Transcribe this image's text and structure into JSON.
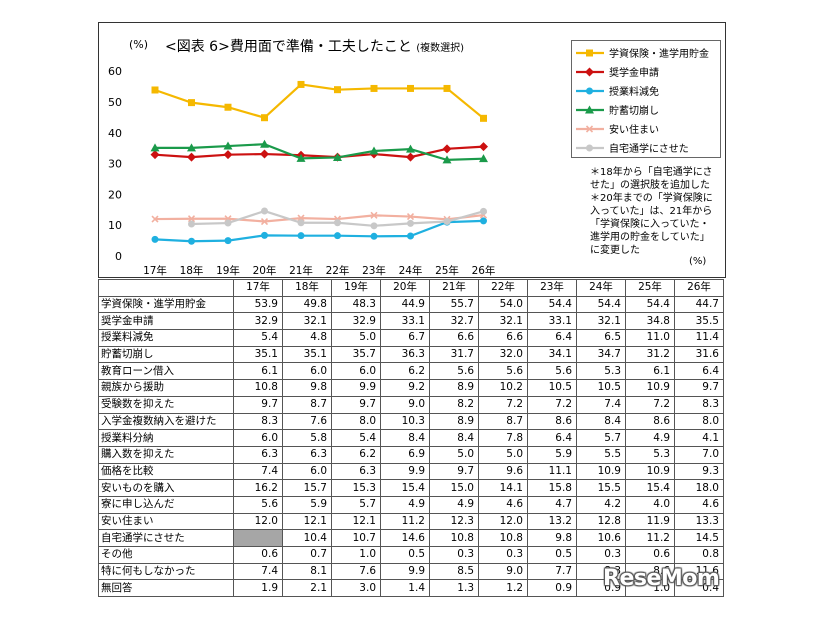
{
  "chart_data": {
    "type": "line",
    "title": "<図表 6>費用面で準備・工夫したこと",
    "subtitle": "(複数選択)",
    "ylabel": "(%)",
    "xunit": "(%)",
    "ylim": [
      0,
      60
    ],
    "yticks": [
      0,
      10,
      20,
      30,
      40,
      50,
      60
    ],
    "categories": [
      "17年",
      "18年",
      "19年",
      "20年",
      "21年",
      "22年",
      "23年",
      "24年",
      "25年",
      "26年"
    ],
    "legend_position": "top-right",
    "series": [
      {
        "name": "学資保険・進学用貯金",
        "color": "#f5b800",
        "marker": "square",
        "values": [
          53.9,
          49.8,
          48.3,
          44.9,
          55.7,
          54.0,
          54.4,
          54.4,
          54.4,
          44.7
        ]
      },
      {
        "name": "奨学金申請",
        "color": "#cc1111",
        "marker": "diamond",
        "values": [
          32.9,
          32.1,
          32.9,
          33.1,
          32.7,
          32.1,
          33.1,
          32.1,
          34.8,
          35.5
        ]
      },
      {
        "name": "授業料減免",
        "color": "#1fb0e0",
        "marker": "circle",
        "values": [
          5.4,
          4.8,
          5.0,
          6.7,
          6.6,
          6.6,
          6.4,
          6.5,
          11.0,
          11.4
        ]
      },
      {
        "name": "貯蓄切崩し",
        "color": "#1a9a4a",
        "marker": "triangle",
        "values": [
          35.1,
          35.1,
          35.7,
          36.3,
          31.7,
          32.0,
          34.1,
          34.7,
          31.2,
          31.6
        ]
      },
      {
        "name": "安い住まい",
        "color": "#f2b0a0",
        "marker": "x",
        "values": [
          12.0,
          12.1,
          12.1,
          11.2,
          12.3,
          12.0,
          13.2,
          12.8,
          11.9,
          13.3
        ]
      },
      {
        "name": "自宅通学にさせた",
        "color": "#c8c8c8",
        "marker": "circle",
        "values": [
          null,
          10.4,
          10.7,
          14.6,
          10.8,
          10.8,
          9.8,
          10.6,
          11.2,
          14.5
        ]
      }
    ],
    "notes": [
      "＊18年から「自宅通学にさ",
      "せた」の選択肢を追加した",
      "＊20年までの「学資保険に",
      "入っていた」は、21年から",
      "「学資保険に入っていた・",
      "進学用の貯金をしていた」",
      "に変更した"
    ],
    "table": {
      "headers": [
        "17年",
        "18年",
        "19年",
        "20年",
        "21年",
        "22年",
        "23年",
        "24年",
        "25年",
        "26年"
      ],
      "rows": [
        {
          "label": "学資保険・進学用貯金",
          "values": [
            "53.9",
            "49.8",
            "48.3",
            "44.9",
            "55.7",
            "54.0",
            "54.4",
            "54.4",
            "54.4",
            "44.7"
          ]
        },
        {
          "label": "奨学金申請",
          "values": [
            "32.9",
            "32.1",
            "32.9",
            "33.1",
            "32.7",
            "32.1",
            "33.1",
            "32.1",
            "34.8",
            "35.5"
          ]
        },
        {
          "label": "授業料減免",
          "values": [
            "5.4",
            "4.8",
            "5.0",
            "6.7",
            "6.6",
            "6.6",
            "6.4",
            "6.5",
            "11.0",
            "11.4"
          ]
        },
        {
          "label": "貯蓄切崩し",
          "values": [
            "35.1",
            "35.1",
            "35.7",
            "36.3",
            "31.7",
            "32.0",
            "34.1",
            "34.7",
            "31.2",
            "31.6"
          ]
        },
        {
          "label": "教育ローン借入",
          "values": [
            "6.1",
            "6.0",
            "6.0",
            "6.2",
            "5.6",
            "5.6",
            "5.6",
            "5.3",
            "6.1",
            "6.4"
          ]
        },
        {
          "label": "親族から援助",
          "values": [
            "10.8",
            "9.8",
            "9.9",
            "9.2",
            "8.9",
            "10.2",
            "10.5",
            "10.5",
            "10.9",
            "9.7"
          ]
        },
        {
          "label": "受験数を抑えた",
          "values": [
            "9.7",
            "8.7",
            "9.7",
            "9.0",
            "8.2",
            "7.2",
            "7.2",
            "7.4",
            "7.2",
            "8.3"
          ]
        },
        {
          "label": "入学金複数納入を避けた",
          "values": [
            "8.3",
            "7.6",
            "8.0",
            "10.3",
            "8.9",
            "8.7",
            "8.6",
            "8.4",
            "8.6",
            "8.0"
          ]
        },
        {
          "label": "授業料分納",
          "values": [
            "6.0",
            "5.8",
            "5.4",
            "8.4",
            "8.4",
            "7.8",
            "6.4",
            "5.7",
            "4.9",
            "4.1"
          ]
        },
        {
          "label": "購入数を抑えた",
          "values": [
            "6.3",
            "6.3",
            "6.2",
            "6.9",
            "5.0",
            "5.0",
            "5.9",
            "5.5",
            "5.3",
            "7.0"
          ]
        },
        {
          "label": "価格を比較",
          "values": [
            "7.4",
            "6.0",
            "6.3",
            "9.9",
            "9.7",
            "9.6",
            "11.1",
            "10.9",
            "10.9",
            "9.3"
          ]
        },
        {
          "label": "安いものを購入",
          "values": [
            "16.2",
            "15.7",
            "15.3",
            "15.4",
            "15.0",
            "14.1",
            "15.8",
            "15.5",
            "15.4",
            "18.0"
          ]
        },
        {
          "label": "寮に申し込んだ",
          "values": [
            "5.6",
            "5.9",
            "5.7",
            "4.9",
            "4.9",
            "4.6",
            "4.7",
            "4.2",
            "4.0",
            "4.6"
          ]
        },
        {
          "label": "安い住まい",
          "values": [
            "12.0",
            "12.1",
            "12.1",
            "11.2",
            "12.3",
            "12.0",
            "13.2",
            "12.8",
            "11.9",
            "13.3"
          ]
        },
        {
          "label": "自宅通学にさせた",
          "values": [
            "",
            "10.4",
            "10.7",
            "14.6",
            "10.8",
            "10.8",
            "9.8",
            "10.6",
            "11.2",
            "14.5"
          ]
        },
        {
          "label": "その他",
          "values": [
            "0.6",
            "0.7",
            "1.0",
            "0.5",
            "0.3",
            "0.3",
            "0.5",
            "0.3",
            "0.6",
            "0.8"
          ]
        },
        {
          "label": "特に何もしなかった",
          "values": [
            "7.4",
            "8.1",
            "7.6",
            "9.9",
            "8.5",
            "9.0",
            "7.7",
            "8.3",
            "8.6",
            "11.6"
          ]
        },
        {
          "label": "無回答",
          "values": [
            "1.9",
            "2.1",
            "3.0",
            "1.4",
            "1.3",
            "1.2",
            "0.9",
            "0.9",
            "1.0",
            "0.4"
          ]
        }
      ]
    }
  },
  "watermark": "ReseMom"
}
